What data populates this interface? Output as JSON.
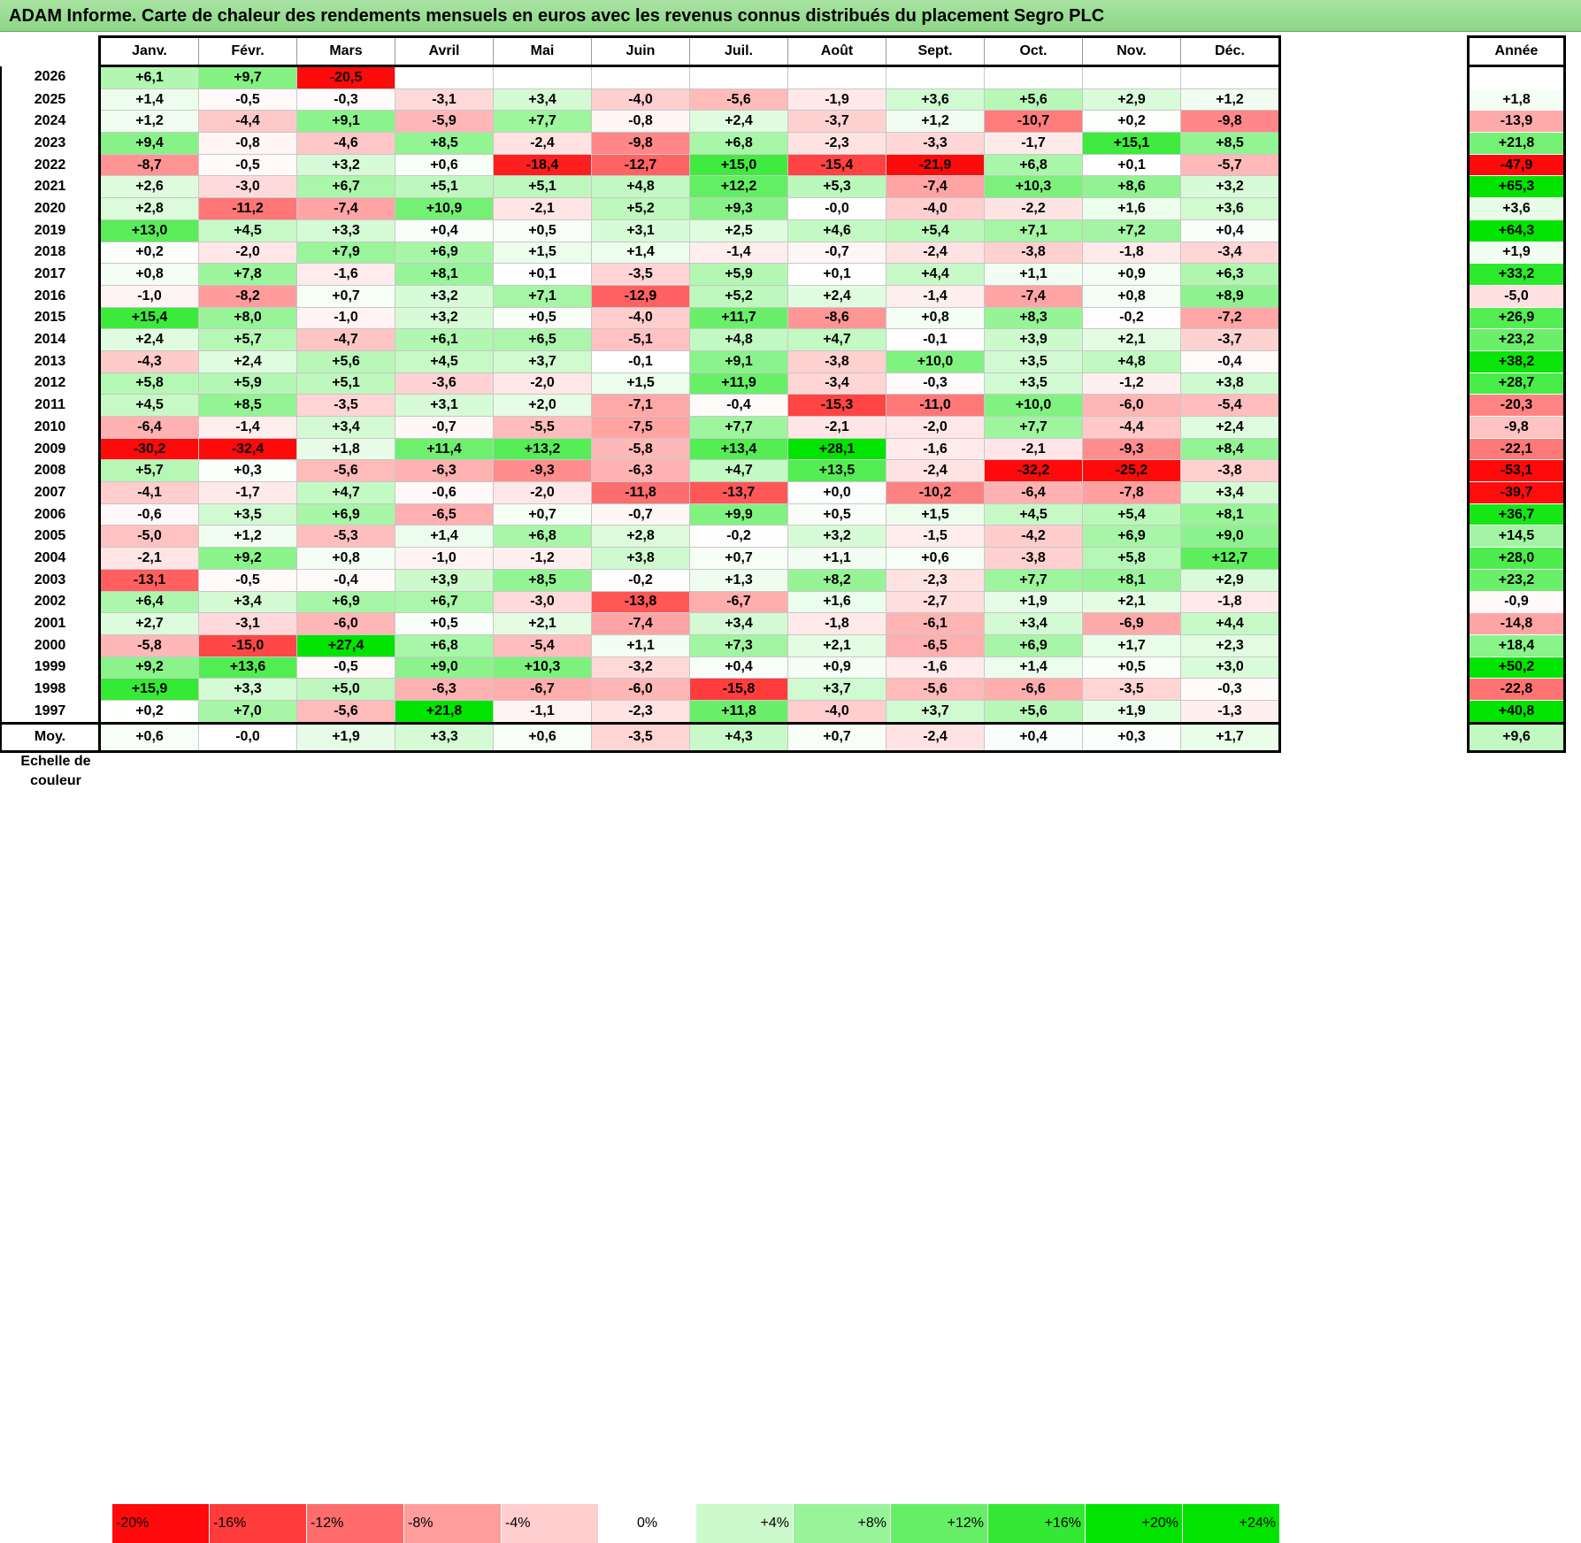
{
  "title": "ADAM Informe. Carte de chaleur des rendements mensuels en euros avec les revenus connus distribués du placement Segro PLC",
  "chart_data": {
    "type": "heatmap",
    "months": [
      "Janv.",
      "Févr.",
      "Mars",
      "Avril",
      "Mai",
      "Juin",
      "Juil.",
      "Août",
      "Sept.",
      "Oct.",
      "Nov.",
      "Déc."
    ],
    "annual_header": "Année",
    "rows": [
      {
        "year": "2026",
        "values": [
          "+6,1",
          "+9,7",
          "-20,5",
          "",
          "",
          "",
          "",
          "",
          "",
          "",
          "",
          ""
        ],
        "annual": ""
      },
      {
        "year": "2025",
        "values": [
          "+1,4",
          "-0,5",
          "-0,3",
          "-3,1",
          "+3,4",
          "-4,0",
          "-5,6",
          "-1,9",
          "+3,6",
          "+5,6",
          "+2,9",
          "+1,2"
        ],
        "annual": "+1,8"
      },
      {
        "year": "2024",
        "values": [
          "+1,2",
          "-4,4",
          "+9,1",
          "-5,9",
          "+7,7",
          "-0,8",
          "+2,4",
          "-3,7",
          "+1,2",
          "-10,7",
          "+0,2",
          "-9,8"
        ],
        "annual": "-13,9"
      },
      {
        "year": "2023",
        "values": [
          "+9,4",
          "-0,8",
          "-4,6",
          "+8,5",
          "-2,4",
          "-9,8",
          "+6,8",
          "-2,3",
          "-3,3",
          "-1,7",
          "+15,1",
          "+8,5"
        ],
        "annual": "+21,8"
      },
      {
        "year": "2022",
        "values": [
          "-8,7",
          "-0,5",
          "+3,2",
          "+0,6",
          "-18,4",
          "-12,7",
          "+15,0",
          "-15,4",
          "-21,9",
          "+6,8",
          "+0,1",
          "-5,7"
        ],
        "annual": "-47,9"
      },
      {
        "year": "2021",
        "values": [
          "+2,6",
          "-3,0",
          "+6,7",
          "+5,1",
          "+5,1",
          "+4,8",
          "+12,2",
          "+5,3",
          "-7,4",
          "+10,3",
          "+8,6",
          "+3,2"
        ],
        "annual": "+65,3"
      },
      {
        "year": "2020",
        "values": [
          "+2,8",
          "-11,2",
          "-7,4",
          "+10,9",
          "-2,1",
          "+5,2",
          "+9,3",
          "-0,0",
          "-4,0",
          "-2,2",
          "+1,6",
          "+3,6"
        ],
        "annual": "+3,6"
      },
      {
        "year": "2019",
        "values": [
          "+13,0",
          "+4,5",
          "+3,3",
          "+0,4",
          "+0,5",
          "+3,1",
          "+2,5",
          "+4,6",
          "+5,4",
          "+7,1",
          "+7,2",
          "+0,4"
        ],
        "annual": "+64,3"
      },
      {
        "year": "2018",
        "values": [
          "+0,2",
          "-2,0",
          "+7,9",
          "+6,9",
          "+1,5",
          "+1,4",
          "-1,4",
          "-0,7",
          "-2,4",
          "-3,8",
          "-1,8",
          "-3,4"
        ],
        "annual": "+1,9"
      },
      {
        "year": "2017",
        "values": [
          "+0,8",
          "+7,8",
          "-1,6",
          "+8,1",
          "+0,1",
          "-3,5",
          "+5,9",
          "+0,1",
          "+4,4",
          "+1,1",
          "+0,9",
          "+6,3"
        ],
        "annual": "+33,2"
      },
      {
        "year": "2016",
        "values": [
          "-1,0",
          "-8,2",
          "+0,7",
          "+3,2",
          "+7,1",
          "-12,9",
          "+5,2",
          "+2,4",
          "-1,4",
          "-7,4",
          "+0,8",
          "+8,9"
        ],
        "annual": "-5,0"
      },
      {
        "year": "2015",
        "values": [
          "+15,4",
          "+8,0",
          "-1,0",
          "+3,2",
          "+0,5",
          "-4,0",
          "+11,7",
          "-8,6",
          "+0,8",
          "+8,3",
          "-0,2",
          "-7,2"
        ],
        "annual": "+26,9"
      },
      {
        "year": "2014",
        "values": [
          "+2,4",
          "+5,7",
          "-4,7",
          "+6,1",
          "+6,5",
          "-5,1",
          "+4,8",
          "+4,7",
          "-0,1",
          "+3,9",
          "+2,1",
          "-3,7"
        ],
        "annual": "+23,2"
      },
      {
        "year": "2013",
        "values": [
          "-4,3",
          "+2,4",
          "+5,6",
          "+4,5",
          "+3,7",
          "-0,1",
          "+9,1",
          "-3,8",
          "+10,0",
          "+3,5",
          "+4,8",
          "-0,4"
        ],
        "annual": "+38,2"
      },
      {
        "year": "2012",
        "values": [
          "+5,8",
          "+5,9",
          "+5,1",
          "-3,6",
          "-2,0",
          "+1,5",
          "+11,9",
          "-3,4",
          "-0,3",
          "+3,5",
          "-1,2",
          "+3,8"
        ],
        "annual": "+28,7"
      },
      {
        "year": "2011",
        "values": [
          "+4,5",
          "+8,5",
          "-3,5",
          "+3,1",
          "+2,0",
          "-7,1",
          "-0,4",
          "-15,3",
          "-11,0",
          "+10,0",
          "-6,0",
          "-5,4"
        ],
        "annual": "-20,3"
      },
      {
        "year": "2010",
        "values": [
          "-6,4",
          "-1,4",
          "+3,4",
          "-0,7",
          "-5,5",
          "-7,5",
          "+7,7",
          "-2,1",
          "-2,0",
          "+7,7",
          "-4,4",
          "+2,4"
        ],
        "annual": "-9,8"
      },
      {
        "year": "2009",
        "values": [
          "-30,2",
          "-32,4",
          "+1,8",
          "+11,4",
          "+13,2",
          "-5,8",
          "+13,4",
          "+28,1",
          "-1,6",
          "-2,1",
          "-9,3",
          "+8,4"
        ],
        "annual": "-22,1"
      },
      {
        "year": "2008",
        "values": [
          "+5,7",
          "+0,3",
          "-5,6",
          "-6,3",
          "-9,3",
          "-6,3",
          "+4,7",
          "+13,5",
          "-2,4",
          "-32,2",
          "-25,2",
          "-3,8"
        ],
        "annual": "-53,1"
      },
      {
        "year": "2007",
        "values": [
          "-4,1",
          "-1,7",
          "+4,7",
          "-0,6",
          "-2,0",
          "-11,8",
          "-13,7",
          "+0,0",
          "-10,2",
          "-6,4",
          "-7,8",
          "+3,4"
        ],
        "annual": "-39,7"
      },
      {
        "year": "2006",
        "values": [
          "-0,6",
          "+3,5",
          "+6,9",
          "-6,5",
          "+0,7",
          "-0,7",
          "+9,9",
          "+0,5",
          "+1,5",
          "+4,5",
          "+5,4",
          "+8,1"
        ],
        "annual": "+36,7"
      },
      {
        "year": "2005",
        "values": [
          "-5,0",
          "+1,2",
          "-5,3",
          "+1,4",
          "+6,8",
          "+2,8",
          "-0,2",
          "+3,2",
          "-1,5",
          "-4,2",
          "+6,9",
          "+9,0"
        ],
        "annual": "+14,5"
      },
      {
        "year": "2004",
        "values": [
          "-2,1",
          "+9,2",
          "+0,8",
          "-1,0",
          "-1,2",
          "+3,8",
          "+0,7",
          "+1,1",
          "+0,6",
          "-3,8",
          "+5,8",
          "+12,7"
        ],
        "annual": "+28,0"
      },
      {
        "year": "2003",
        "values": [
          "-13,1",
          "-0,5",
          "-0,4",
          "+3,9",
          "+8,5",
          "-0,2",
          "+1,3",
          "+8,2",
          "-2,3",
          "+7,7",
          "+8,1",
          "+2,9"
        ],
        "annual": "+23,2"
      },
      {
        "year": "2002",
        "values": [
          "+6,4",
          "+3,4",
          "+6,9",
          "+6,7",
          "-3,0",
          "-13,8",
          "-6,7",
          "+1,6",
          "-2,7",
          "+1,9",
          "+2,1",
          "-1,8"
        ],
        "annual": "-0,9"
      },
      {
        "year": "2001",
        "values": [
          "+2,7",
          "-3,1",
          "-6,0",
          "+0,5",
          "+2,1",
          "-7,4",
          "+3,4",
          "-1,8",
          "-6,1",
          "+3,4",
          "-6,9",
          "+4,4"
        ],
        "annual": "-14,8"
      },
      {
        "year": "2000",
        "values": [
          "-5,8",
          "-15,0",
          "+27,4",
          "+6,8",
          "-5,4",
          "+1,1",
          "+7,3",
          "+2,1",
          "-6,5",
          "+6,9",
          "+1,7",
          "+2,3"
        ],
        "annual": "+18,4"
      },
      {
        "year": "1999",
        "values": [
          "+9,2",
          "+13,6",
          "-0,5",
          "+9,0",
          "+10,3",
          "-3,2",
          "+0,4",
          "+0,9",
          "-1,6",
          "+1,4",
          "+0,5",
          "+3,0"
        ],
        "annual": "+50,2"
      },
      {
        "year": "1998",
        "values": [
          "+15,9",
          "+3,3",
          "+5,0",
          "-6,3",
          "-6,7",
          "-6,0",
          "-15,8",
          "+3,7",
          "-5,6",
          "-6,6",
          "-3,5",
          "-0,3"
        ],
        "annual": "-22,8"
      },
      {
        "year": "1997",
        "values": [
          "+0,2",
          "+7,0",
          "-5,6",
          "+21,8",
          "-1,1",
          "-2,3",
          "+11,8",
          "-4,0",
          "+3,7",
          "+5,6",
          "+1,9",
          "-1,3"
        ],
        "annual": "+40,8"
      }
    ],
    "average": {
      "label": "Moy.",
      "values": [
        "+0,6",
        "-0,0",
        "+1,9",
        "+3,3",
        "+0,6",
        "-3,5",
        "+4,3",
        "+0,7",
        "-2,4",
        "+0,4",
        "+0,3",
        "+1,7"
      ],
      "annual": "+9,6"
    },
    "legend": {
      "label": "Echelle de couleur",
      "stops": [
        "-20%",
        "-16%",
        "-12%",
        "-8%",
        "-4%",
        "0%",
        "+4%",
        "+8%",
        "+12%",
        "+16%",
        "+20%",
        "+24%"
      ],
      "values": [
        -20,
        -16,
        -12,
        -8,
        -4,
        0,
        4,
        8,
        12,
        16,
        20,
        24
      ]
    },
    "colors": {
      "negative": "#ff0000",
      "neutral": "#ffffff",
      "positive": "#00e400"
    }
  }
}
